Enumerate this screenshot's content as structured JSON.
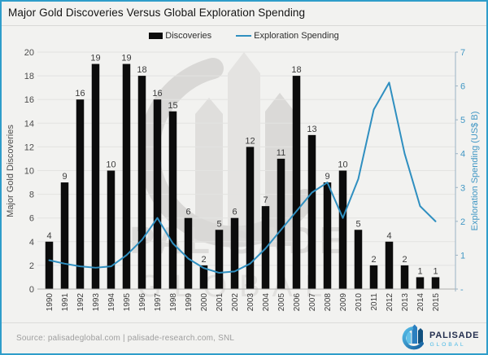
{
  "title": "Major Gold Discoveries Versus Global Exploration Spending",
  "legend": {
    "discoveries_label": "Discoveries",
    "spending_label": "Exploration Spending"
  },
  "footer": {
    "source": "Source: palisadeglobal.com | palisade-research.com, SNL"
  },
  "logo": {
    "name": "PALISADE",
    "sub": "GLOBAL"
  },
  "watermark": {
    "name": "PALISADE",
    "sub": "GLOBAL"
  },
  "colors": {
    "border_blue": "#2f9dca",
    "line_blue": "#2f8fc0",
    "right_axis_blue": "#4197c4",
    "bar_black": "#0c0c0c",
    "grid": "#e3e3e1",
    "baseline": "#aeaeac",
    "right_axis_line": "#9bb3c4",
    "text_dark": "#3c3c3c",
    "tick_text": "#4d4d4d",
    "source_gray": "#9e9e9e",
    "watermark_gray": "#dcdbd9",
    "logo_navy": "#25304f",
    "logo_lightblue": "#49b9e6"
  },
  "chart_data": {
    "type": "bar+line combo",
    "title": "Major Gold Discoveries Versus Global Exploration Spending",
    "categories": [
      "1990",
      "1991",
      "1992",
      "1993",
      "1994",
      "1995",
      "1996",
      "1997",
      "1998",
      "1999",
      "2000",
      "2001",
      "2002",
      "2003",
      "2004",
      "2005",
      "2006",
      "2007",
      "2008",
      "2009",
      "2010",
      "2011",
      "2012",
      "2013",
      "2014",
      "2015"
    ],
    "series": [
      {
        "name": "Discoveries",
        "type": "bar",
        "axis": "left",
        "color": "#0c0c0c",
        "values": [
          4,
          9,
          16,
          19,
          10,
          19,
          18,
          16,
          15,
          6,
          2,
          5,
          6,
          12,
          7,
          11,
          18,
          13,
          9,
          10,
          5,
          2,
          4,
          2,
          1,
          1
        ],
        "data_labels": true
      },
      {
        "name": "Exploration Spending",
        "type": "line",
        "axis": "right",
        "color": "#2f8fc0",
        "values": [
          0.85,
          0.75,
          0.67,
          0.63,
          0.67,
          1.0,
          1.45,
          2.1,
          1.35,
          0.9,
          0.62,
          0.48,
          0.52,
          0.75,
          1.2,
          1.75,
          2.3,
          2.85,
          3.15,
          2.1,
          3.25,
          5.3,
          6.1,
          4.0,
          2.45,
          2.0
        ],
        "data_labels": false
      }
    ],
    "left_axis": {
      "label": "Major Gold Discoveries",
      "min": 0,
      "max": 20,
      "step": 2,
      "ticks": [
        "0",
        "2",
        "4",
        "6",
        "8",
        "10",
        "12",
        "14",
        "16",
        "18",
        "20"
      ]
    },
    "right_axis": {
      "label": "Exploration Spending (US$ B)",
      "min": 0,
      "max": 7,
      "step": 1,
      "ticks": [
        "-",
        "1",
        "2",
        "3",
        "4",
        "5",
        "6",
        "7"
      ]
    },
    "grid": "horizontal",
    "legend_position": "top-center"
  }
}
